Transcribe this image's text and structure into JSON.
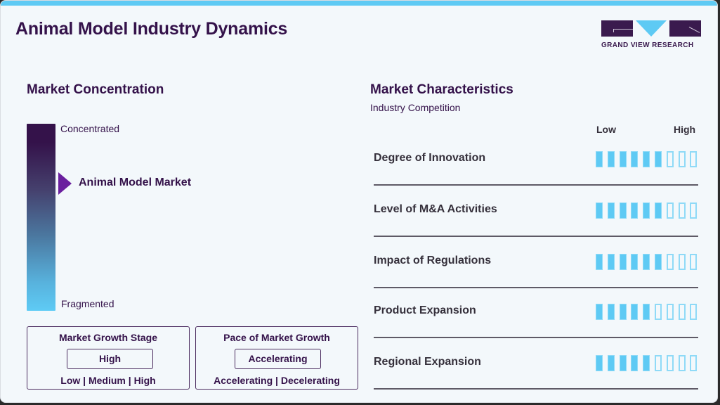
{
  "header": {
    "title": "Animal Model Industry Dynamics",
    "logo_text": "GRAND VIEW RESEARCH"
  },
  "colors": {
    "accent_blue": "#5ecaf4",
    "brand_purple": "#34124a",
    "pointer_purple": "#6a1f9e"
  },
  "concentration": {
    "heading": "Market Concentration",
    "top_label": "Concentrated",
    "bottom_label": "Fragmented",
    "marker_label": "Animal Model Market"
  },
  "growth_stage": {
    "title": "Market Growth Stage",
    "value": "High",
    "options": "Low | Medium | High"
  },
  "growth_pace": {
    "title": "Pace of Market Growth",
    "value": "Accelerating",
    "options": "Accelerating | Decelerating"
  },
  "characteristics": {
    "heading": "Market Characteristics",
    "subheading": "Industry Competition",
    "scale_low": "Low",
    "scale_high": "High",
    "max_rating": 9,
    "rows": [
      {
        "label": "Degree of Innovation",
        "rating": 6
      },
      {
        "label": "Level of M&A Activities",
        "rating": 6
      },
      {
        "label": "Impact of Regulations",
        "rating": 6
      },
      {
        "label": "Product Expansion",
        "rating": 5
      },
      {
        "label": "Regional Expansion",
        "rating": 5
      }
    ]
  }
}
